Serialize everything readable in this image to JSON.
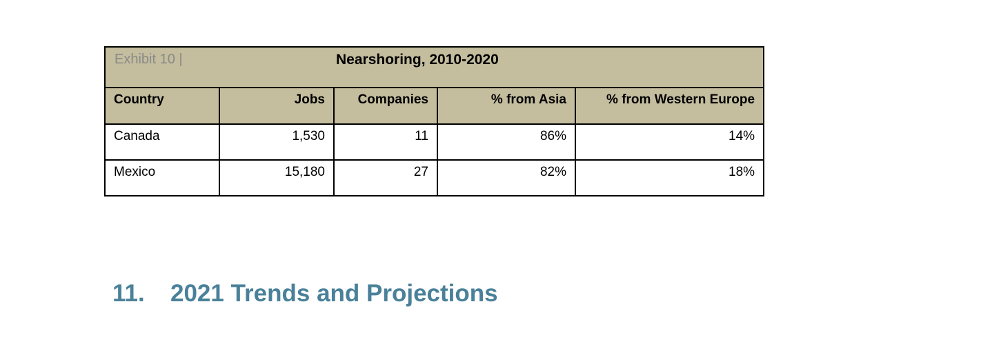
{
  "exhibit": {
    "label": "Exhibit 10 |",
    "title": "Nearshoring, 2010-2020",
    "header_color": "#c4bd9e",
    "columns": [
      "Country",
      "Jobs",
      "Companies",
      "% from Asia",
      "% from Western Europe"
    ],
    "rows": [
      [
        "Canada",
        "1,530",
        "11",
        "86%",
        "14%"
      ],
      [
        "Mexico",
        "15,180",
        "27",
        "82%",
        "18%"
      ]
    ]
  },
  "section": {
    "number": "11.",
    "title": "2021 Trends and Projections",
    "color": "#4a8199"
  }
}
